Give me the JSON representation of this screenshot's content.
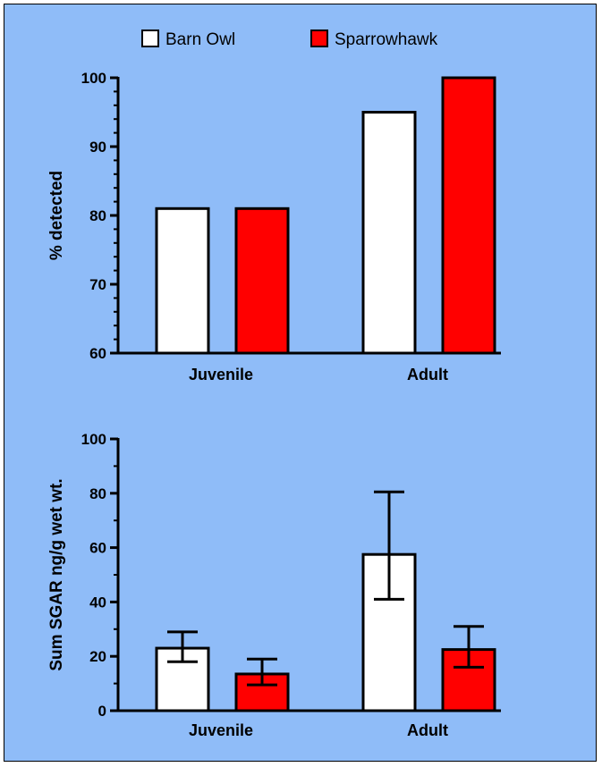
{
  "colors": {
    "background": "#8fbcf8",
    "barn_owl": "#ffffff",
    "sparrowhawk": "#ff0000",
    "stroke": "#000000"
  },
  "legend": {
    "position": "top",
    "entries": [
      {
        "label": "Barn Owl",
        "color": "#ffffff"
      },
      {
        "label": "Sparrowhawk",
        "color": "#ff0000"
      }
    ]
  },
  "chart_data": [
    {
      "type": "bar",
      "title": "",
      "xlabel": "",
      "ylabel": "% detected",
      "categories": [
        "Juvenile",
        "Adult"
      ],
      "ylim": [
        60,
        100
      ],
      "yticks": [
        60,
        70,
        80,
        90,
        100
      ],
      "grid": false,
      "series": [
        {
          "name": "Barn Owl",
          "values": [
            81,
            95
          ]
        },
        {
          "name": "Sparrowhawk",
          "values": [
            81,
            100
          ]
        }
      ]
    },
    {
      "type": "bar",
      "title": "",
      "xlabel": "",
      "ylabel": "Sum SGAR ng/g wet wt.",
      "categories": [
        "Juvenile",
        "Adult"
      ],
      "ylim": [
        0,
        100
      ],
      "yticks": [
        0,
        20,
        40,
        60,
        80,
        100
      ],
      "grid": false,
      "series": [
        {
          "name": "Barn Owl",
          "values": [
            23,
            57.5
          ],
          "error_low": [
            18,
            41
          ],
          "error_high": [
            29,
            80.5
          ]
        },
        {
          "name": "Sparrowhawk",
          "values": [
            13.5,
            22.5
          ],
          "error_low": [
            9.5,
            16
          ],
          "error_high": [
            19,
            31
          ]
        }
      ]
    }
  ]
}
